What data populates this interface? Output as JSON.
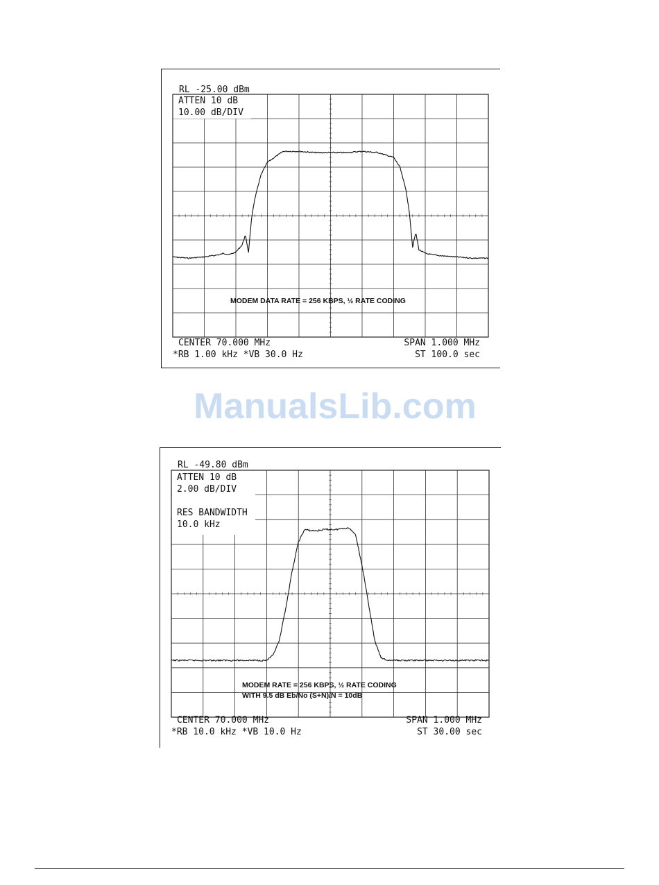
{
  "watermark": "ManualsLib.com",
  "chart_data": [
    {
      "type": "line",
      "title": "",
      "header_lines": [
        "RL -25.00 dBm",
        "ATTEN 10 dB",
        "10.00 dB/DIV"
      ],
      "caption_lines": [
        "MODEM DATA RATE = 256 KBPS, ½ RATE CODING"
      ],
      "footer_left": [
        "CENTER 70.000 MHz",
        "*RB 1.00 kHz   *VB 30.0 Hz"
      ],
      "footer_right": [
        "SPAN 1.000 MHz",
        "ST 100.0 sec"
      ],
      "xlabel": "",
      "ylabel": "",
      "x_unit": "MHz",
      "y_unit": "dBm",
      "xlim": [
        69.5,
        70.5
      ],
      "ylim": [
        -125,
        -25
      ],
      "grid": true,
      "grid_divisions": [
        10,
        10
      ],
      "series": [
        {
          "x": [
            69.5,
            69.55,
            69.6,
            69.65,
            69.66,
            69.68,
            69.7,
            69.72,
            69.73,
            69.74,
            69.75,
            69.76,
            69.78,
            69.8,
            69.85,
            69.9,
            69.95,
            70.0,
            70.05,
            70.1,
            70.15,
            70.2,
            70.22,
            70.24,
            70.25,
            70.26,
            70.27,
            70.28,
            70.3,
            70.32,
            70.35,
            70.4,
            70.45,
            70.5
          ],
          "y": [
            -92,
            -92.5,
            -92,
            -91,
            -90.5,
            -91,
            -90,
            -87,
            -83,
            -90,
            -76,
            -68,
            -58,
            -53,
            -48.5,
            -48.5,
            -49,
            -49,
            -49,
            -48.5,
            -49,
            -51,
            -55,
            -65,
            -74,
            -88,
            -82,
            -89,
            -90.5,
            -91,
            -91.5,
            -92,
            -92.5,
            -92.5
          ]
        }
      ]
    },
    {
      "type": "line",
      "title": "",
      "header_lines": [
        "RL -49.80 dBm",
        "ATTEN 10 dB",
        "2.00 dB/DIV",
        "",
        "RES BANDWIDTH",
        "10.0 kHz"
      ],
      "caption_lines": [
        "MODEM RATE = 256 KBPS, ½ RATE CODING",
        "WITH 9.5 dB Eb/No (S+N)/N = 10dB"
      ],
      "footer_left": [
        "CENTER 70.000 MHz",
        "*RB 10.0 kHz   *VB 10.0 Hz"
      ],
      "footer_right": [
        "SPAN 1.000 MHz",
        "ST 30.00 sec"
      ],
      "xlabel": "",
      "ylabel": "",
      "x_unit": "MHz",
      "y_unit": "dBm",
      "xlim": [
        69.5,
        70.5
      ],
      "ylim": [
        -69.8,
        -49.8
      ],
      "grid": true,
      "grid_divisions": [
        10,
        10
      ],
      "series": [
        {
          "x": [
            69.5,
            69.6,
            69.7,
            69.8,
            69.82,
            69.84,
            69.86,
            69.88,
            69.9,
            69.92,
            69.94,
            69.96,
            69.98,
            70.0,
            70.02,
            70.04,
            70.06,
            70.08,
            70.1,
            70.12,
            70.14,
            70.16,
            70.18,
            70.2,
            70.3,
            70.4,
            70.5
          ],
          "y": [
            -65.2,
            -65.2,
            -65.2,
            -65.2,
            -64.8,
            -63.6,
            -61,
            -58,
            -55.6,
            -54.6,
            -54.7,
            -54.7,
            -54.6,
            -54.6,
            -54.6,
            -54.5,
            -54.5,
            -55,
            -57.5,
            -60.5,
            -63.6,
            -65,
            -65.2,
            -65.2,
            -65.2,
            -65.2,
            -65.2
          ]
        }
      ]
    }
  ]
}
